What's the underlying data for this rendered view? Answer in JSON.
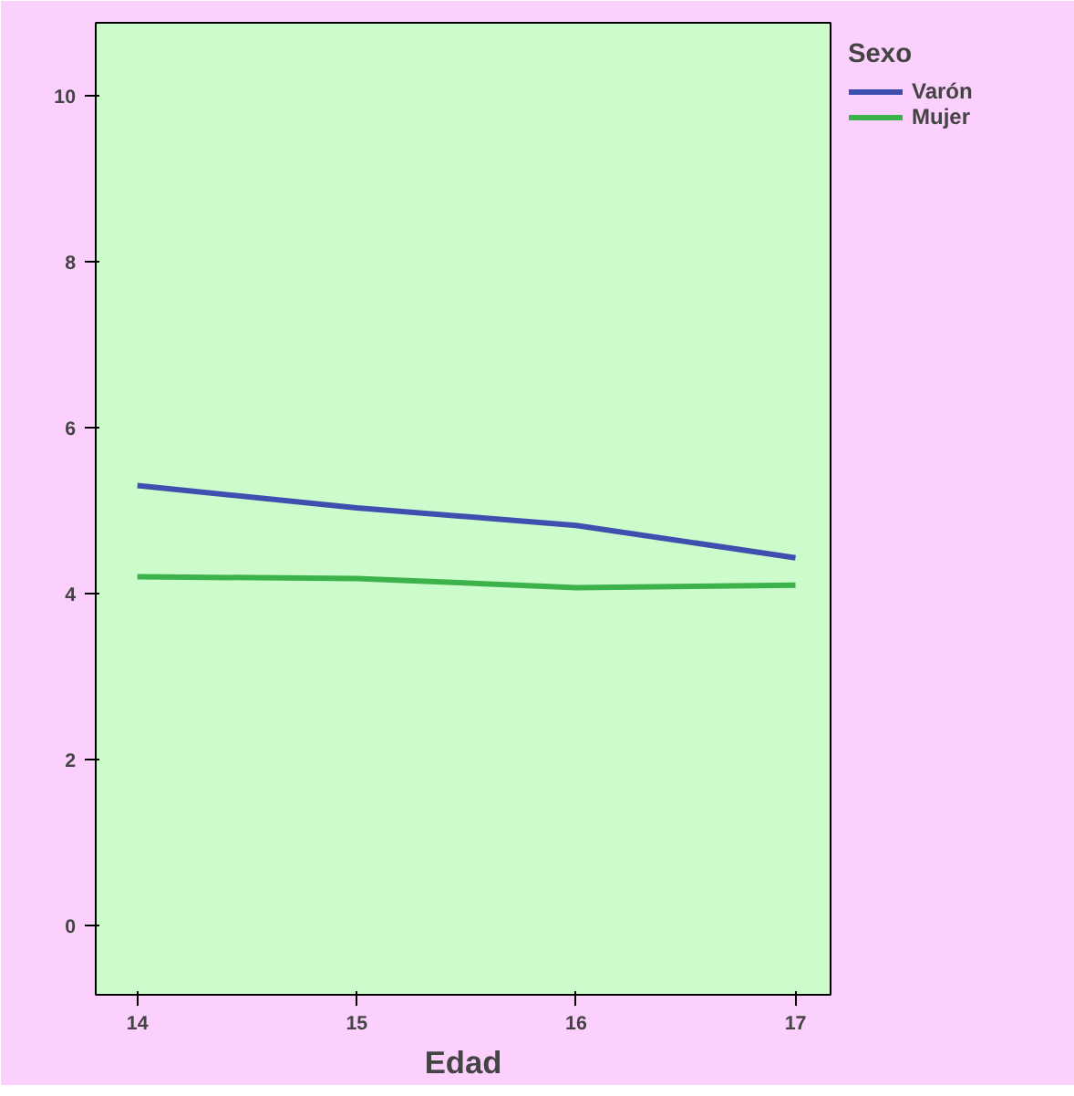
{
  "chart_data": {
    "type": "line",
    "xlabel": "Edad",
    "legend_title": "Sexo",
    "x": [
      14,
      15,
      16,
      17
    ],
    "series": [
      {
        "name": "Varón",
        "color": "#3f4fb0",
        "values": [
          5.3,
          5.03,
          4.82,
          4.43
        ]
      },
      {
        "name": "Mujer",
        "color": "#3cb34a",
        "values": [
          4.2,
          4.18,
          4.07,
          4.1
        ]
      }
    ],
    "xlim": [
      13.81,
      17.16
    ],
    "ylim": [
      -0.84,
      10.88
    ],
    "xticks": [
      14,
      15,
      16,
      17
    ],
    "yticks": [
      0,
      2,
      4,
      6,
      8,
      10
    ],
    "grid": false,
    "legend": "top right",
    "marker": "none",
    "line_style": "solid"
  }
}
